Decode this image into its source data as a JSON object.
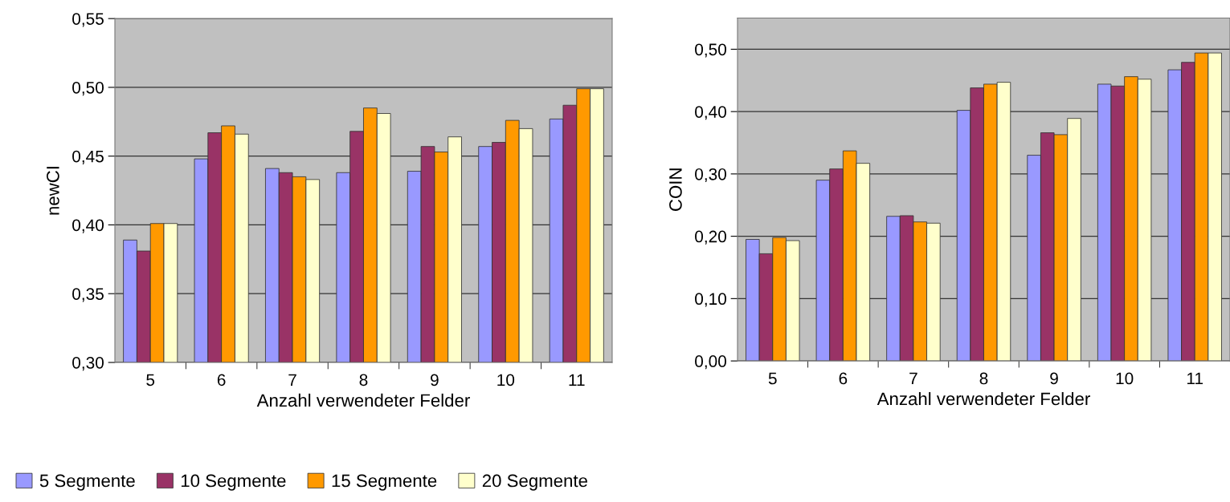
{
  "chart_data": [
    {
      "type": "bar",
      "categories": [
        "5",
        "6",
        "7",
        "8",
        "9",
        "10",
        "11"
      ],
      "xlabel": "Anzahl verwendeter Felder",
      "ylabel": "newCI",
      "ylim": [
        0.3,
        0.55
      ],
      "yticks": [
        {
          "value": 0.3,
          "label": "0,30"
        },
        {
          "value": 0.35,
          "label": "0,35"
        },
        {
          "value": 0.4,
          "label": "0,40"
        },
        {
          "value": 0.45,
          "label": "0,45"
        },
        {
          "value": 0.5,
          "label": "0,50"
        },
        {
          "value": 0.55,
          "label": "0,55"
        }
      ],
      "grid": "y",
      "legend": "bottom",
      "series": [
        {
          "name": "5 Segmente",
          "color": "#9999ff",
          "values": [
            0.389,
            0.448,
            0.441,
            0.438,
            0.439,
            0.457,
            0.477
          ]
        },
        {
          "name": "10 Segmente",
          "color": "#993366",
          "values": [
            0.381,
            0.467,
            0.438,
            0.468,
            0.457,
            0.46,
            0.487
          ]
        },
        {
          "name": "15 Segmente",
          "color": "#ff9900",
          "values": [
            0.401,
            0.472,
            0.435,
            0.485,
            0.453,
            0.476,
            0.499
          ]
        },
        {
          "name": "20 Segmente",
          "color": "#ffffcc",
          "values": [
            0.401,
            0.466,
            0.433,
            0.481,
            0.464,
            0.47,
            0.499
          ]
        }
      ]
    },
    {
      "type": "bar",
      "categories": [
        "5",
        "6",
        "7",
        "8",
        "9",
        "10",
        "11"
      ],
      "xlabel": "Anzahl verwendeter Felder",
      "ylabel": "COIN",
      "ylim": [
        0.0,
        0.55
      ],
      "yticks": [
        {
          "value": 0.0,
          "label": "0,00"
        },
        {
          "value": 0.1,
          "label": "0,10"
        },
        {
          "value": 0.2,
          "label": "0,20"
        },
        {
          "value": 0.3,
          "label": "0,30"
        },
        {
          "value": 0.4,
          "label": "0,40"
        },
        {
          "value": 0.5,
          "label": "0,50"
        }
      ],
      "grid": "y",
      "series": [
        {
          "color": "#9999ff",
          "values": [
            0.195,
            0.29,
            0.232,
            0.402,
            0.33,
            0.444,
            0.467
          ]
        },
        {
          "color": "#993366",
          "values": [
            0.172,
            0.308,
            0.233,
            0.438,
            0.366,
            0.441,
            0.479
          ]
        },
        {
          "color": "#ff9900",
          "values": [
            0.198,
            0.337,
            0.223,
            0.444,
            0.363,
            0.456,
            0.494
          ]
        },
        {
          "color": "#ffffcc",
          "values": [
            0.193,
            0.317,
            0.221,
            0.447,
            0.389,
            0.452,
            0.494
          ]
        }
      ]
    }
  ]
}
